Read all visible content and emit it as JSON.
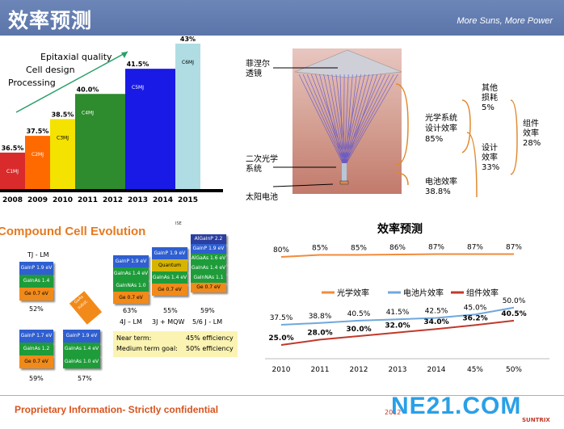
{
  "header": {
    "title": "效率预测",
    "slogan": "More Suns, More Power"
  },
  "bar_chart": {
    "annotations": [
      "Epitaxial quality",
      "Cell design",
      "Processing"
    ],
    "chart_data": {
      "type": "bar",
      "categories": [
        "2008",
        "2009",
        "2010",
        "2011",
        "2012",
        "2013",
        "2014",
        "2015"
      ],
      "values": [
        36.5,
        37.5,
        38.5,
        40.0,
        40.0,
        41.5,
        41.5,
        43
      ],
      "labels": [
        "36.5%",
        "37.5%",
        "38.5%",
        "40.0%",
        "",
        "41.5%",
        "",
        "43%"
      ],
      "bar_labels": [
        "C1MJ",
        "C2MJ",
        "C3MJ",
        "C4MJ",
        "",
        "C5MJ",
        "",
        "C6MJ"
      ],
      "colors": [
        "#d92b2b",
        "#ff6a00",
        "#f4e200",
        "#2e8b2e",
        "#2e8b2e",
        "#1a1ae6",
        "#1a1ae6",
        "#b0dde4"
      ]
    }
  },
  "concentrator": {
    "left_labels": [
      "菲涅尔\n透镜",
      "二次光学\n系统",
      "太阳电池"
    ],
    "optical_eff": "光学系统\n设计效率\n85%",
    "cell_eff": "电池效率\n38.8%",
    "other_loss": "其他\n损耗\n5%",
    "design_eff": "设计\n效率\n33%",
    "module_eff": "组件\n效率\n28%"
  },
  "cell_evolution": {
    "title": "Compound Cell Evolution",
    "ise": "ISE",
    "tj_title": "TJ - LM",
    "tj_layers": [
      "GaInP 1.9 eV",
      "GaInAs 1.4 eV",
      "Ge  0.7 eV"
    ],
    "tj_pct": "52%",
    "q1_layers": [
      "GaInP 1.7 eV",
      "GaInAs 1.2 eV",
      "Ge  0.7 eV"
    ],
    "q1_pct": "59%",
    "q2_layers": [
      "GaInP 1.9 eV",
      "GaInAs 1.4 eV",
      "GaInAs 1.0 eV"
    ],
    "q2_pct": "57%",
    "bond": "GaAs\nsubst.",
    "c4_layers": [
      "GaInP 1.9 eV",
      "GaInAs 1.4 eV",
      "GaInNAs 1.0 eV",
      "Ge  0.7 eV"
    ],
    "c4_pct": "63%",
    "c4_label": "4J – LM",
    "c5_layers": [
      "GaInP 1.9 eV",
      "Quantum Wells",
      "GaInAs 1.4 eV",
      "Ge  0.7 eV"
    ],
    "c5_pct": "55%",
    "c5_label": "3J + MQW",
    "c6_layers": [
      "AlGaInP 2.2 eV",
      "GaInP 1.9 eV",
      "AlGaAs 1.6 eV",
      "GaInAs 1.4 eV",
      "GaInNAs 1.1 eV",
      "Ge  0.7 eV"
    ],
    "c6_pct": "59%",
    "c6_label": "5/6 J - LM",
    "near_term": "Near term:",
    "near_val": "45% efficiency",
    "medium_term": "Medium term goal:",
    "medium_val": "50% efficiency"
  },
  "line_chart": {
    "chart_data": {
      "type": "line",
      "title": "效率预测",
      "categories": [
        "2010",
        "2011",
        "2012",
        "2013",
        "2014",
        "45%",
        "50%"
      ],
      "series": [
        {
          "name": "光学效率",
          "values": [
            80,
            85,
            85,
            86,
            87,
            87,
            87
          ],
          "labels": [
            "80%",
            "85%",
            "85%",
            "86%",
            "87%",
            "87%",
            "87%"
          ],
          "color": "#f28b3c"
        },
        {
          "name": "电池片效率",
          "values": [
            37.5,
            38.8,
            40.5,
            41.5,
            42.5,
            45,
            50
          ],
          "labels": [
            "37.5%",
            "38.8%",
            "40.5%",
            "41.5%",
            "42.5%",
            "45.0%",
            "50.0%"
          ],
          "color": "#6fa8dc"
        },
        {
          "name": "组件效率",
          "values": [
            25,
            28,
            30,
            32,
            34,
            36.2,
            40.5
          ],
          "labels": [
            "25.0%",
            "28.0%",
            "30.0%",
            "32.0%",
            "34.0%",
            "36.2%",
            "40.5%"
          ],
          "color": "#c0392b"
        }
      ]
    }
  },
  "footer": {
    "text": "Proprietary Information- Strictly confidential",
    "year": "2012",
    "logo": "NE21.COM",
    "brand": "SUNTRIX"
  }
}
